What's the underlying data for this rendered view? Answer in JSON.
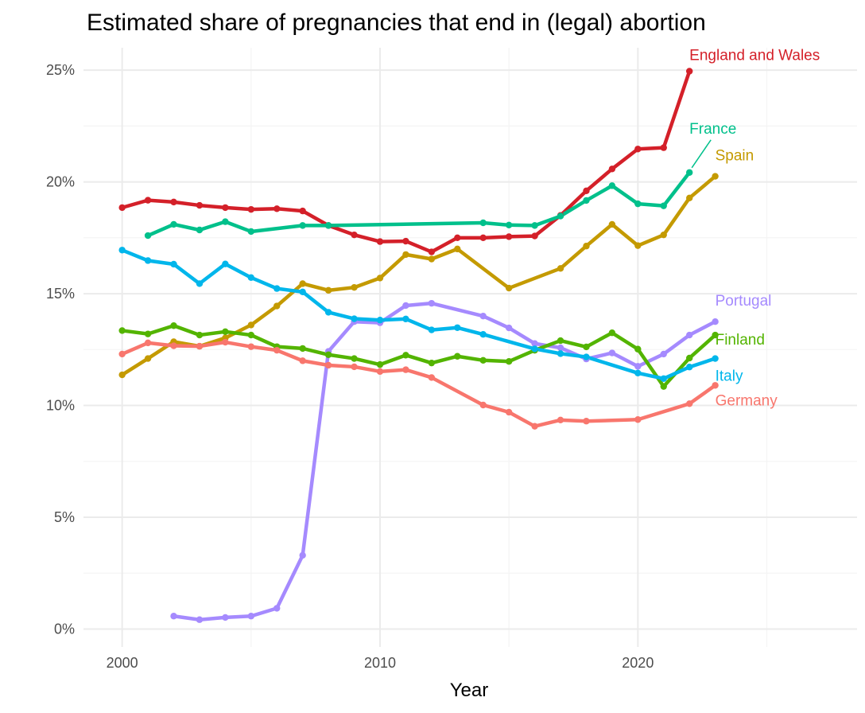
{
  "chart_data": {
    "type": "line",
    "title": "Estimated share of pregnancies that end in (legal) abortion",
    "xlabel": "Year",
    "ylabel": "",
    "xlim": [
      1998.5,
      2028.5
    ],
    "ylim": [
      -0.8,
      26
    ],
    "x_ticks": [
      2000,
      2010,
      2020
    ],
    "x_tick_labels": [
      "2000",
      "2010",
      "2020"
    ],
    "x_minor_ticks": [
      2005,
      2015,
      2025
    ],
    "y_ticks": [
      0,
      5,
      10,
      15,
      20,
      25
    ],
    "y_tick_labels": [
      "0%",
      "5%",
      "10%",
      "15%",
      "20%",
      "25%"
    ],
    "y_minor_ticks": [
      2.5,
      7.5,
      12.5,
      17.5,
      22.5
    ],
    "grid": true,
    "legend": "none",
    "series": [
      {
        "name": "England and Wales",
        "color": "#d42029",
        "x": [
          2000,
          2001,
          2002,
          2003,
          2004,
          2005,
          2006,
          2007,
          2008,
          2009,
          2010,
          2011,
          2012,
          2013,
          2014,
          2015,
          2016,
          2017,
          2018,
          2019,
          2020,
          2021,
          2022
        ],
        "values": [
          18.85,
          19.18,
          19.1,
          18.95,
          18.85,
          18.77,
          18.8,
          18.7,
          18.05,
          17.63,
          17.33,
          17.35,
          16.87,
          17.5,
          17.5,
          17.55,
          17.58,
          18.5,
          19.6,
          20.58,
          21.47,
          21.53,
          24.95
        ]
      },
      {
        "name": "France",
        "color": "#00c08b",
        "x": [
          2001,
          2002,
          2003,
          2004,
          2005,
          2007,
          2008,
          2014,
          2015,
          2016,
          2017,
          2018,
          2019,
          2020,
          2021,
          2022
        ],
        "values": [
          17.6,
          18.1,
          17.85,
          18.22,
          17.78,
          18.05,
          18.05,
          18.17,
          18.07,
          18.05,
          18.47,
          19.17,
          19.83,
          19.02,
          18.93,
          20.42
        ]
      },
      {
        "name": "Spain",
        "color": "#c49a00",
        "x": [
          2000,
          2001,
          2002,
          2003,
          2004,
          2005,
          2006,
          2007,
          2008,
          2009,
          2010,
          2011,
          2012,
          2013,
          2015,
          2017,
          2018,
          2019,
          2020,
          2021,
          2022,
          2023
        ],
        "values": [
          11.37,
          12.1,
          12.85,
          12.65,
          13.02,
          13.6,
          14.45,
          15.45,
          15.15,
          15.28,
          15.7,
          16.75,
          16.55,
          17.0,
          15.25,
          16.13,
          17.13,
          18.1,
          17.15,
          17.63,
          19.28,
          20.25
        ]
      },
      {
        "name": "Portugal",
        "color": "#a58afe",
        "x": [
          2002,
          2003,
          2004,
          2005,
          2006,
          2007,
          2008,
          2009,
          2010,
          2011,
          2012,
          2014,
          2015,
          2016,
          2017,
          2018,
          2019,
          2020,
          2021,
          2022,
          2023
        ],
        "values": [
          0.58,
          0.42,
          0.52,
          0.58,
          0.93,
          3.3,
          12.42,
          13.75,
          13.7,
          14.47,
          14.57,
          14.0,
          13.47,
          12.77,
          12.58,
          12.08,
          12.35,
          11.75,
          12.3,
          13.15,
          13.75
        ]
      },
      {
        "name": "Finland",
        "color": "#53b400",
        "x": [
          2000,
          2001,
          2002,
          2003,
          2004,
          2005,
          2006,
          2007,
          2008,
          2009,
          2010,
          2011,
          2012,
          2013,
          2014,
          2015,
          2016,
          2017,
          2018,
          2019,
          2020,
          2021,
          2022,
          2023
        ],
        "values": [
          13.35,
          13.2,
          13.57,
          13.15,
          13.3,
          13.15,
          12.63,
          12.55,
          12.27,
          12.1,
          11.83,
          12.25,
          11.9,
          12.2,
          12.02,
          11.97,
          12.47,
          12.9,
          12.62,
          13.25,
          12.52,
          10.85,
          12.12,
          13.15
        ]
      },
      {
        "name": "Italy",
        "color": "#00b6eb",
        "x": [
          2000,
          2001,
          2002,
          2003,
          2004,
          2005,
          2006,
          2007,
          2008,
          2009,
          2010,
          2011,
          2012,
          2013,
          2014,
          2016,
          2017,
          2018,
          2020,
          2021,
          2022,
          2023
        ],
        "values": [
          16.95,
          16.48,
          16.32,
          15.45,
          16.33,
          15.72,
          15.23,
          15.08,
          14.17,
          13.88,
          13.82,
          13.87,
          13.38,
          13.48,
          13.18,
          12.53,
          12.32,
          12.17,
          11.45,
          11.2,
          11.72,
          12.1
        ]
      },
      {
        "name": "Germany",
        "color": "#f8766d",
        "x": [
          2000,
          2001,
          2002,
          2003,
          2004,
          2005,
          2006,
          2007,
          2008,
          2009,
          2010,
          2011,
          2012,
          2014,
          2015,
          2016,
          2017,
          2018,
          2020,
          2022,
          2023
        ],
        "values": [
          12.3,
          12.8,
          12.67,
          12.65,
          12.83,
          12.63,
          12.47,
          12.0,
          11.8,
          11.73,
          11.52,
          11.6,
          11.25,
          10.02,
          9.7,
          9.07,
          9.35,
          9.3,
          9.37,
          10.08,
          10.9
        ]
      }
    ],
    "series_labels": [
      {
        "name": "England and Wales",
        "text": "England and Wales",
        "color": "#d42029",
        "x": 2022,
        "y": 24.95,
        "dx": 0,
        "dy": -14
      },
      {
        "name": "France",
        "text": "France",
        "color": "#00c08b",
        "x": 2022,
        "y": 20.42,
        "dx": 0,
        "dy": -49,
        "leader": true
      },
      {
        "name": "Spain",
        "text": "Spain",
        "color": "#c49a00",
        "x": 2023,
        "y": 20.25,
        "dx": 0,
        "dy": -20
      },
      {
        "name": "Portugal",
        "text": "Portugal",
        "color": "#a58afe",
        "x": 2023,
        "y": 13.75,
        "dx": 0,
        "dy": -20
      },
      {
        "name": "Finland",
        "text": "Finland",
        "color": "#53b400",
        "x": 2023,
        "y": 13.15,
        "dx": 0,
        "dy": 12
      },
      {
        "name": "Italy",
        "text": "Italy",
        "color": "#00b6eb",
        "x": 2023,
        "y": 12.1,
        "dx": 0,
        "dy": 28
      },
      {
        "name": "Germany",
        "text": "Germany",
        "color": "#f8766d",
        "x": 2023,
        "y": 10.9,
        "dx": 0,
        "dy": 25
      }
    ]
  }
}
